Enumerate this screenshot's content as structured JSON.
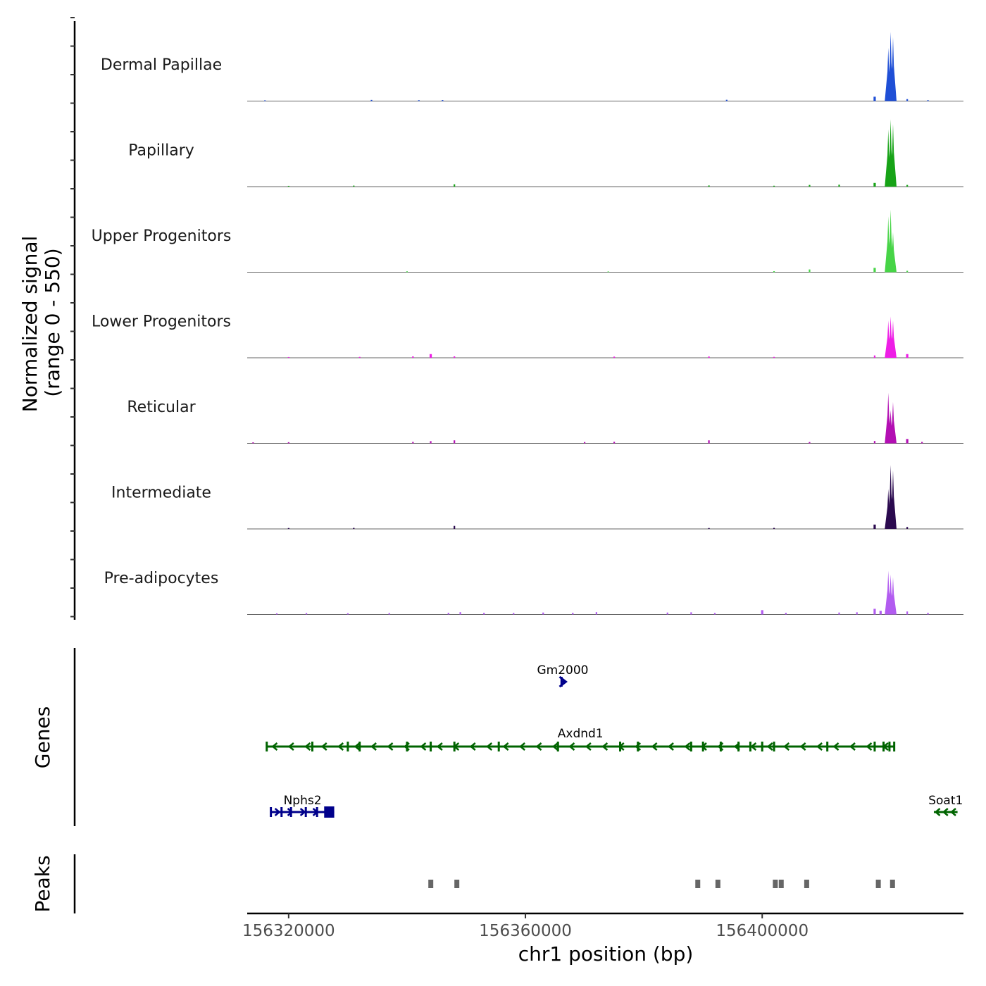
{
  "chart_data": {
    "type": "area",
    "title": "",
    "ylabel_line1": "Normalized signal",
    "ylabel_line2": "(range 0 - 550)",
    "ylim": [
      0,
      550
    ],
    "xlabel": "chr1 position (bp)",
    "xlim": [
      156313000,
      156434000
    ],
    "x_ticks": [
      156320000,
      156360000,
      156400000
    ],
    "x_tick_labels": [
      "156320000",
      "156360000",
      "156400000"
    ],
    "genes_label": "Genes",
    "peaks_label": "Peaks",
    "series": [
      {
        "name": "Dermal Papillae",
        "color": "#1f4fd6",
        "x": [
          156316000,
          156334000,
          156342000,
          156346000,
          156394000,
          156419000,
          156421300,
          156421700,
          156422100,
          156424500,
          156428000
        ],
        "values": [
          3,
          6,
          4,
          5,
          7,
          30,
          400,
          520,
          480,
          12,
          4
        ]
      },
      {
        "name": "Papillary",
        "color": "#17a317",
        "x": [
          156320000,
          156331000,
          156348000,
          156391000,
          156402000,
          156408000,
          156413000,
          156419000,
          156421300,
          156421700,
          156422100,
          156424500
        ],
        "values": [
          3,
          5,
          15,
          6,
          4,
          10,
          12,
          25,
          430,
          505,
          470,
          10
        ]
      },
      {
        "name": "Upper Progenitors",
        "color": "#47d447",
        "x": [
          156340000,
          156374000,
          156402000,
          156408000,
          156419000,
          156421300,
          156421700,
          156422100,
          156424500
        ],
        "values": [
          4,
          3,
          5,
          18,
          30,
          420,
          470,
          300,
          8
        ]
      },
      {
        "name": "Lower Progenitors",
        "color": "#ee1ee6",
        "x": [
          156320000,
          156332000,
          156341000,
          156344000,
          156348000,
          156375000,
          156391000,
          156402000,
          156419000,
          156421300,
          156421700,
          156422100,
          156424500
        ],
        "values": [
          3,
          4,
          8,
          25,
          8,
          6,
          7,
          4,
          15,
          280,
          310,
          280,
          25
        ]
      },
      {
        "name": "Reticular",
        "color": "#b30fb3",
        "x": [
          156314000,
          156320000,
          156341000,
          156344000,
          156348000,
          156370000,
          156375000,
          156391000,
          156408000,
          156419000,
          156421300,
          156421700,
          156422100,
          156424500,
          156427000
        ],
        "values": [
          5,
          6,
          8,
          14,
          20,
          7,
          9,
          20,
          7,
          15,
          380,
          250,
          310,
          30,
          8
        ]
      },
      {
        "name": "Intermediate",
        "color": "#2b0a4f",
        "x": [
          156320000,
          156331000,
          156348000,
          156391000,
          156402000,
          156419000,
          156421300,
          156421700,
          156422100,
          156424500
        ],
        "values": [
          4,
          5,
          20,
          4,
          5,
          30,
          300,
          480,
          440,
          12
        ]
      },
      {
        "name": "Pre-adipocytes",
        "color": "#b25cf0",
        "x": [
          156318000,
          156323000,
          156330000,
          156337000,
          156347000,
          156349000,
          156353000,
          156358000,
          156363000,
          156368000,
          156372000,
          156384000,
          156388000,
          156392000,
          156400000,
          156404000,
          156413000,
          156416000,
          156419000,
          156420000,
          156421300,
          156421700,
          156422100,
          156424500,
          156428000
        ],
        "values": [
          6,
          8,
          7,
          8,
          10,
          15,
          10,
          9,
          12,
          10,
          15,
          12,
          14,
          9,
          30,
          10,
          12,
          14,
          40,
          25,
          330,
          300,
          280,
          20,
          10
        ]
      }
    ],
    "genes": [
      {
        "name": "Gm2000",
        "strand": "+",
        "start": 156366000,
        "end": 156366600,
        "row": 1,
        "color": "#00008b",
        "exons": [
          156366100
        ]
      },
      {
        "name": "Axdnd1",
        "strand": "-",
        "start": 156316300,
        "end": 156422300,
        "row": 2,
        "color": "#006400",
        "exons": [
          156316300,
          156324000,
          156330000,
          156332000,
          156340000,
          156344000,
          156348000,
          156355500,
          156365500,
          156376000,
          156379000,
          156388000,
          156390000,
          156393000,
          156396000,
          156398000,
          156400000,
          156402000,
          156411000,
          156419000,
          156420500,
          156421500,
          156422300
        ],
        "strand_arrows": 38
      },
      {
        "name": "Nphs2",
        "strand": "+",
        "start": 156317000,
        "end": 156327700,
        "row": 3,
        "color": "#00008b",
        "exons": [
          156317000,
          156318800,
          156320400,
          156322900,
          156324800
        ],
        "utr_block": [
          156326000,
          156327700
        ],
        "strand_arrows": 5
      },
      {
        "name": "Soat1",
        "strand": "-",
        "start": 156429000,
        "end": 156433000,
        "row": 3,
        "color": "#006400",
        "exons": [],
        "strand_arrows": 3
      }
    ],
    "peaks": [
      {
        "start": 156343600,
        "end": 156344400
      },
      {
        "start": 156348000,
        "end": 156348800
      },
      {
        "start": 156388700,
        "end": 156389500
      },
      {
        "start": 156392100,
        "end": 156392900
      },
      {
        "start": 156401800,
        "end": 156402600
      },
      {
        "start": 156402800,
        "end": 156403600
      },
      {
        "start": 156407100,
        "end": 156407900
      },
      {
        "start": 156419200,
        "end": 156420000
      },
      {
        "start": 156421600,
        "end": 156422400
      }
    ],
    "colors": {
      "peak": "#666666",
      "baseline": "#666666",
      "axis": "#000000"
    }
  }
}
